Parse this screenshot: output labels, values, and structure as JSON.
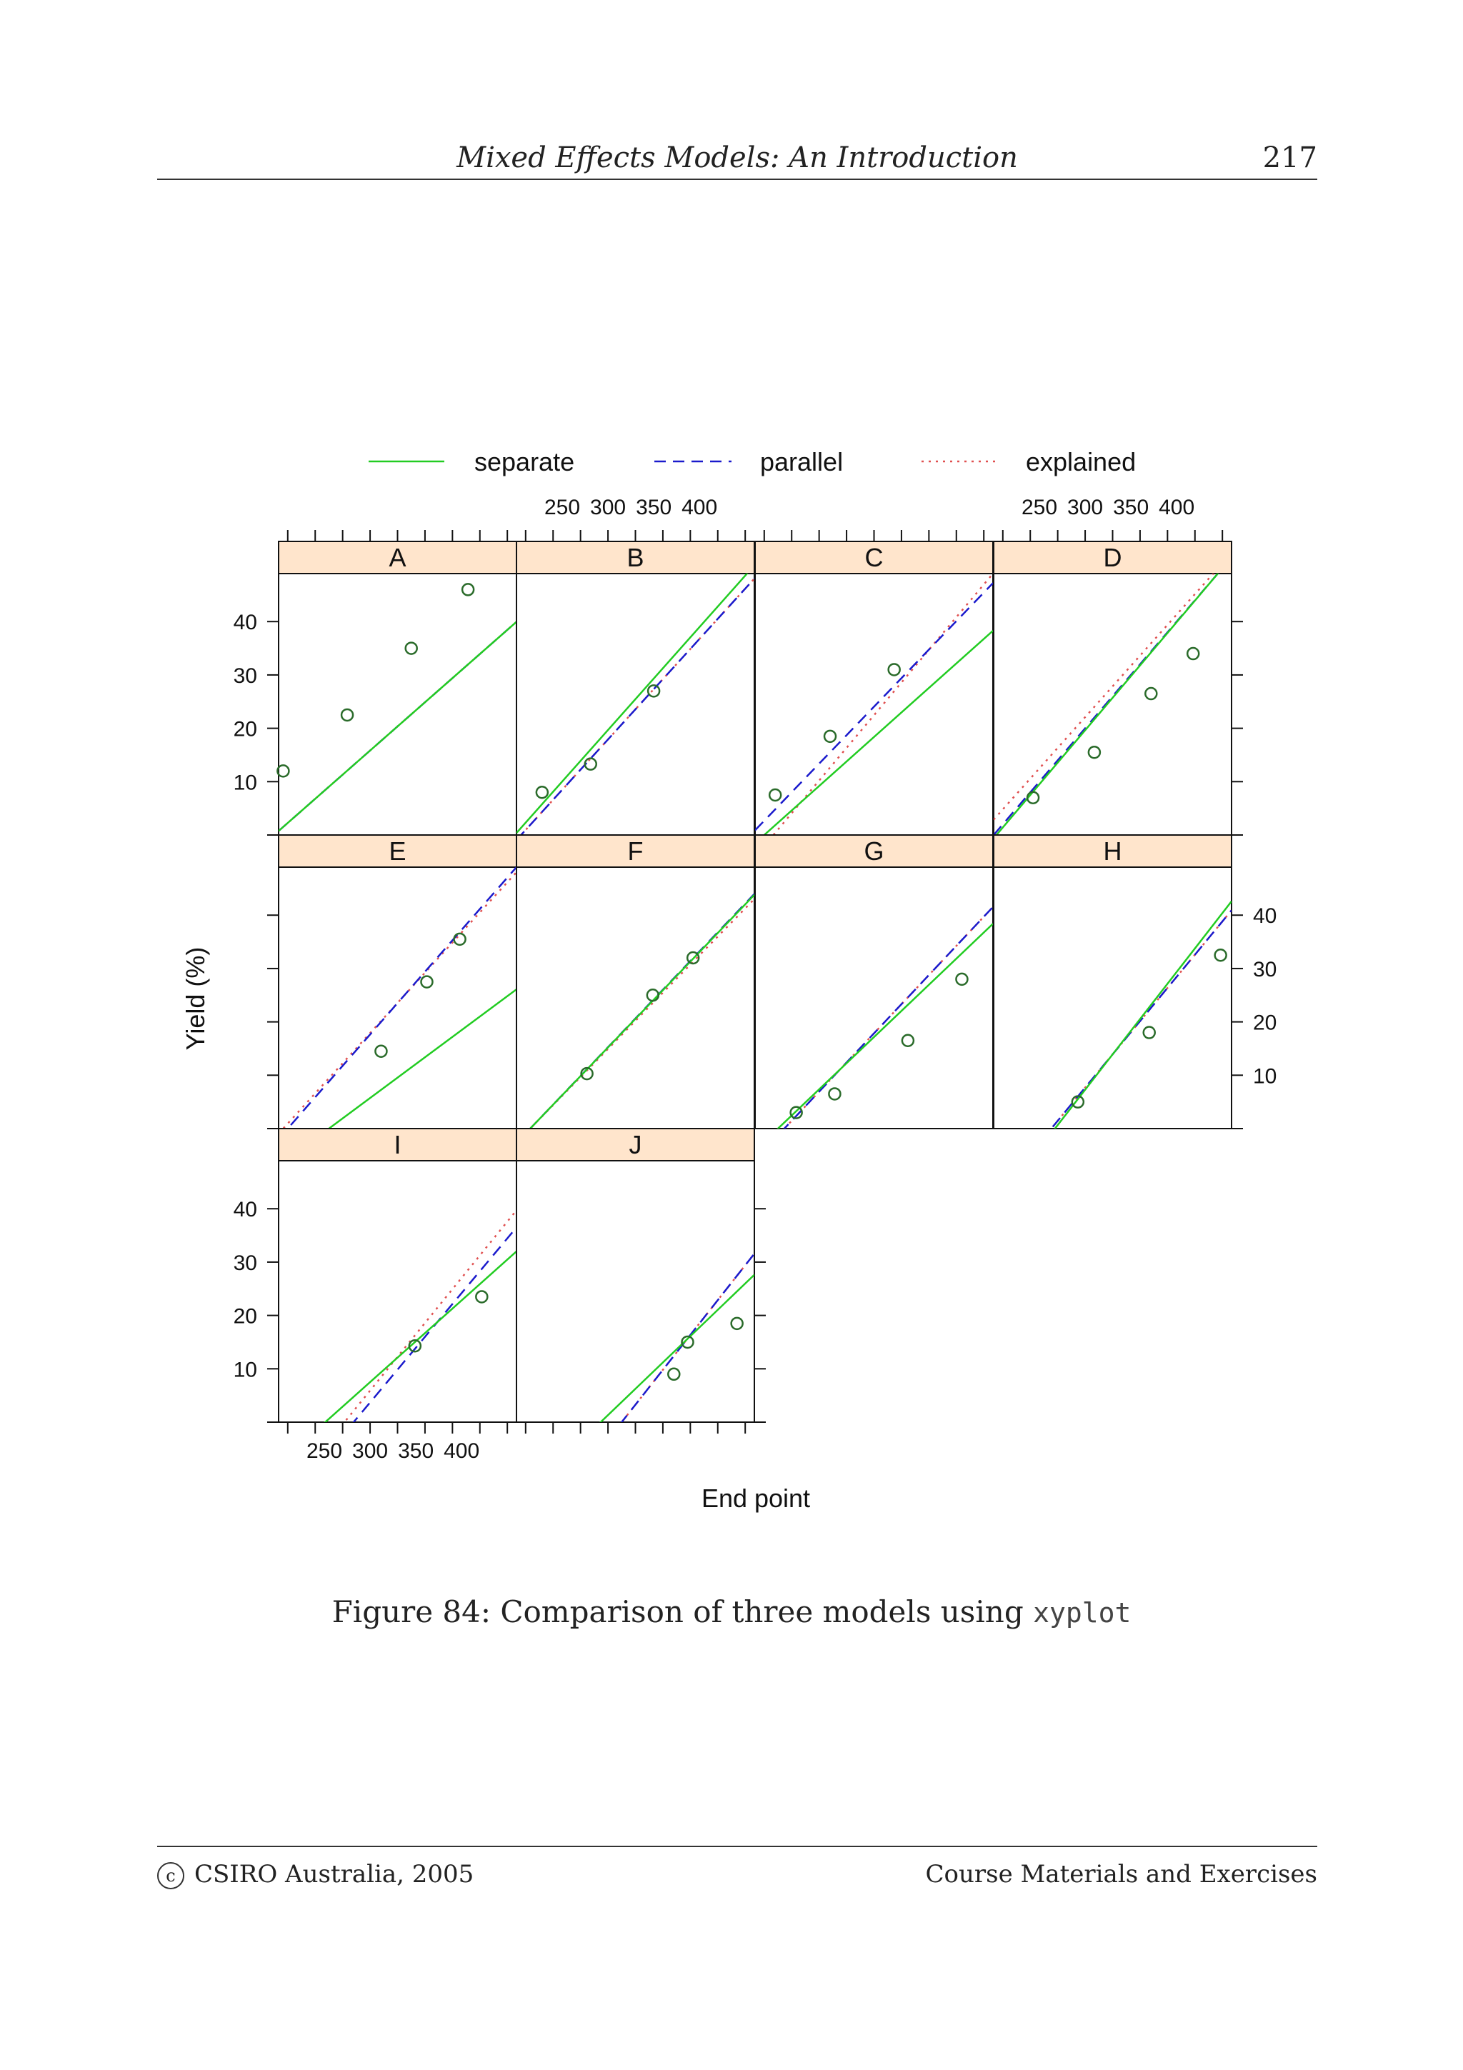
{
  "header": {
    "title": "Mixed Effects Models: An Introduction",
    "page_number": "217"
  },
  "caption": {
    "text": "Figure 84: Comparison of three models using ",
    "code": "xyplot"
  },
  "footer": {
    "copyright_symbol": "c",
    "left": "CSIRO Australia, 2005",
    "right": "Course Materials and Exercises"
  },
  "chart_data": {
    "type": "scatter",
    "xlabel": "End point",
    "ylabel": "Yield (%)",
    "xlim": [
      200,
      460
    ],
    "ylim": [
      0,
      49
    ],
    "x_ticks": [
      250,
      300,
      350,
      400
    ],
    "y_ticks": [
      10,
      20,
      30,
      40
    ],
    "legend": {
      "placement": "top",
      "entries": [
        {
          "name": "separate",
          "color": "#22cc22",
          "dash": "solid"
        },
        {
          "name": "parallel",
          "color": "#1a1acc",
          "dash": "dashed"
        },
        {
          "name": "explained",
          "color": "#e05050",
          "dash": "dotted"
        }
      ]
    },
    "panels": [
      {
        "label": "A",
        "points": [
          [
            205,
            12
          ],
          [
            275,
            22.5
          ],
          [
            345,
            35
          ],
          [
            407,
            46
          ]
        ],
        "lines": {
          "separate": [
            195,
            520
          ],
          "parallel": [
            195,
            520
          ],
          "explained": [
            195,
            520
          ]
        }
      },
      {
        "label": "B",
        "points": [
          [
            228,
            8
          ],
          [
            281,
            13.3
          ],
          [
            350,
            27
          ]
        ],
        "lines": {
          "separate": [
            198,
            452
          ],
          "parallel": [
            205,
            465
          ],
          "explained": [
            205,
            465
          ]
        }
      },
      {
        "label": "C",
        "points": [
          [
            222,
            7.5
          ],
          [
            282,
            18.5
          ],
          [
            352,
            31
          ]
        ],
        "lines": {
          "separate": [
            210,
            530
          ],
          "parallel": [
            195,
            470
          ],
          "explained": [
            220,
            460
          ]
        }
      },
      {
        "label": "D",
        "points": [
          [
            243,
            7
          ],
          [
            310,
            15.5
          ],
          [
            372,
            26.5
          ],
          [
            418,
            34
          ]
        ],
        "lines": {
          "separate": [
            203,
            445
          ],
          "parallel": [
            200,
            445
          ],
          "explained": [
            185,
            440
          ]
        }
      },
      {
        "label": "E",
        "points": [
          [
            312,
            14.5
          ],
          [
            362,
            27.5
          ],
          [
            398,
            35.5
          ]
        ],
        "lines": {
          "separate": [
            255,
            640
          ],
          "parallel": [
            210,
            460
          ],
          "explained": [
            205,
            465
          ]
        }
      },
      {
        "label": "F",
        "points": [
          [
            277,
            10.3
          ],
          [
            349,
            25
          ],
          [
            393,
            32
          ]
        ],
        "lines": {
          "separate": [
            215,
            489
          ],
          "parallel": [
            215,
            488
          ],
          "explained": [
            215,
            494
          ]
        }
      },
      {
        "label": "G",
        "points": [
          [
            245,
            3
          ],
          [
            287,
            6.5
          ],
          [
            367,
            16.5
          ],
          [
            426,
            28
          ]
        ],
        "lines": {
          "separate": [
            225,
            525
          ],
          "parallel": [
            232,
            501
          ],
          "explained": [
            232,
            501
          ]
        }
      },
      {
        "label": "H",
        "points": [
          [
            292,
            5
          ],
          [
            370,
            18
          ],
          [
            448,
            32.5
          ]
        ],
        "lines": {
          "separate": [
            267,
            489
          ],
          "parallel": [
            263,
            499
          ],
          "explained": [
            263,
            499
          ]
        }
      },
      {
        "label": "I",
        "points": [
          [
            349,
            14.3
          ],
          [
            422,
            23.5
          ]
        ],
        "lines": {
          "separate": [
            251,
            571
          ],
          "parallel": [
            282,
            521
          ],
          "explained": [
            272,
            504
          ]
        }
      },
      {
        "label": "J",
        "points": [
          [
            372,
            9
          ],
          [
            387,
            15
          ],
          [
            441,
            18.5
          ]
        ],
        "lines": {
          "separate": [
            292,
            590
          ],
          "parallel": [
            315,
            540
          ],
          "explained": [
            315,
            540
          ]
        }
      }
    ]
  }
}
